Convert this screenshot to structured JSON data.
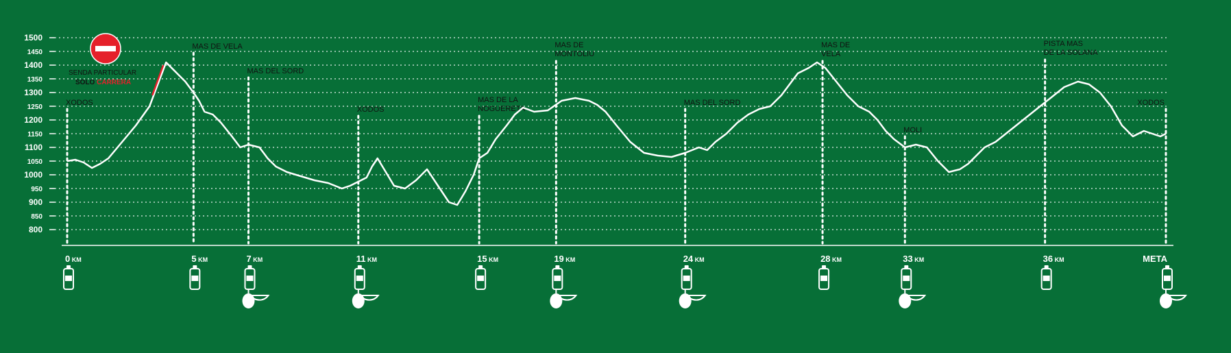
{
  "chart_data": {
    "type": "line",
    "title": "",
    "xlabel": "",
    "ylabel": "",
    "ylim": [
      750,
      1500
    ],
    "xlim": [
      0,
      40
    ],
    "y_ticks": [
      800,
      850,
      900,
      950,
      1000,
      1050,
      1100,
      1150,
      1200,
      1250,
      1300,
      1350,
      1400,
      1450,
      1500
    ],
    "grid": true,
    "km_unit": "KM",
    "series": [
      {
        "color": "#ffffff",
        "x": [
          0,
          0.3,
          0.6,
          0.9,
          1.2,
          1.5,
          2.0,
          2.5,
          3.0,
          3.3,
          3.6,
          4.0,
          4.3,
          4.6,
          4.8,
          5.0,
          5.3,
          5.6,
          6.0,
          6.3,
          6.6,
          7.0,
          7.3,
          7.6,
          8.0,
          8.5,
          9.0,
          9.5,
          10.0,
          10.3,
          10.6,
          10.9,
          11.1,
          11.3,
          11.6,
          11.9,
          12.3,
          12.7,
          13.1,
          13.5,
          13.9,
          14.2,
          14.5,
          14.8,
          15.0,
          15.3,
          15.6,
          16.0,
          16.3,
          16.6,
          17.0,
          17.5,
          18.0,
          18.5,
          19.0,
          19.3,
          19.6,
          20.0,
          20.5,
          21.0,
          21.5,
          22.0,
          22.5,
          23.0,
          23.3,
          23.6,
          24.0,
          24.4,
          24.8,
          25.2,
          25.6,
          26.0,
          26.3,
          26.6,
          27.0,
          27.3,
          27.6,
          28.0,
          28.4,
          28.8,
          29.2,
          29.5,
          29.8,
          30.1,
          30.5,
          30.9,
          31.3,
          31.7,
          32.1,
          32.5,
          32.8,
          33.0,
          33.4,
          33.8,
          34.3,
          34.8,
          35.3,
          35.8,
          36.3,
          36.8,
          37.2,
          37.6,
          38.0,
          38.4,
          38.8,
          39.2,
          39.5,
          39.8,
          40.0
        ],
        "values": [
          1050,
          1055,
          1045,
          1025,
          1040,
          1060,
          1120,
          1180,
          1250,
          1330,
          1410,
          1370,
          1340,
          1300,
          1270,
          1230,
          1220,
          1190,
          1140,
          1100,
          1110,
          1100,
          1060,
          1030,
          1010,
          995,
          980,
          970,
          950,
          960,
          975,
          990,
          1030,
          1060,
          1010,
          960,
          950,
          980,
          1020,
          960,
          900,
          890,
          940,
          1000,
          1060,
          1080,
          1130,
          1180,
          1220,
          1245,
          1230,
          1235,
          1270,
          1280,
          1270,
          1255,
          1230,
          1180,
          1120,
          1080,
          1070,
          1065,
          1080,
          1100,
          1090,
          1120,
          1150,
          1190,
          1220,
          1240,
          1250,
          1290,
          1330,
          1370,
          1390,
          1410,
          1390,
          1340,
          1290,
          1250,
          1230,
          1200,
          1160,
          1130,
          1100,
          1110,
          1100,
          1050,
          1010,
          1020,
          1040,
          1060,
          1100,
          1120,
          1160,
          1200,
          1240,
          1280,
          1320,
          1340,
          1330,
          1300,
          1250,
          1180,
          1140,
          1160,
          1150,
          1140,
          1150
        ]
      }
    ],
    "restricted_segment": {
      "x": [
        3.1,
        3.5
      ],
      "y": [
        1290,
        1400
      ],
      "color": "#e5202a"
    },
    "no_entry_note": {
      "line1": "SENDA PARTICULAR",
      "line2_a": "SOLO",
      "line2_b": "CARRERA"
    },
    "km_markers": [
      {
        "km": 0,
        "label": "0",
        "unit": true,
        "bottle": true,
        "food": false
      },
      {
        "km": 4.6,
        "label": "5",
        "unit": true,
        "bottle": true,
        "food": false
      },
      {
        "km": 6.6,
        "label": "7",
        "unit": true,
        "bottle": true,
        "food": true
      },
      {
        "km": 10.6,
        "label": "11",
        "unit": true,
        "bottle": true,
        "food": true
      },
      {
        "km": 15.0,
        "label": "15",
        "unit": true,
        "bottle": true,
        "food": false
      },
      {
        "km": 17.8,
        "label": "19",
        "unit": true,
        "bottle": true,
        "food": true
      },
      {
        "km": 22.5,
        "label": "24",
        "unit": true,
        "bottle": true,
        "food": true
      },
      {
        "km": 27.5,
        "label": "28",
        "unit": true,
        "bottle": true,
        "food": false
      },
      {
        "km": 30.5,
        "label": "33",
        "unit": true,
        "bottle": true,
        "food": true
      },
      {
        "km": 35.6,
        "label": "36",
        "unit": true,
        "bottle": true,
        "food": false
      },
      {
        "km": 40.0,
        "label": "META",
        "unit": false,
        "bottle": true,
        "food": true
      }
    ],
    "waypoints": [
      {
        "km": 0,
        "lines": [
          "XODOS"
        ],
        "label_y": 1255,
        "top_y": 1240
      },
      {
        "km": 4.6,
        "lines": [
          "MAS DE VELA"
        ],
        "label_y": 1460,
        "top_y": 1445
      },
      {
        "km": 6.6,
        "lines": [
          "MAS DEL SORD"
        ],
        "label_y": 1370,
        "top_y": 1355
      },
      {
        "km": 10.6,
        "lines": [
          "XODOS"
        ],
        "label_y": 1230,
        "top_y": 1215
      },
      {
        "km": 15.0,
        "lines": [
          "MAS DE LA",
          "NOGUERETA"
        ],
        "label_y": 1265,
        "top_y": 1215
      },
      {
        "km": 17.8,
        "lines": [
          "MAS DE",
          "MONTOLIU"
        ],
        "label_y": 1465,
        "top_y": 1415
      },
      {
        "km": 22.5,
        "lines": [
          "MAS DEL SORD"
        ],
        "label_y": 1255,
        "top_y": 1240
      },
      {
        "km": 27.5,
        "lines": [
          "MAS DE",
          "VELA"
        ],
        "label_y": 1465,
        "top_y": 1415
      },
      {
        "km": 30.5,
        "lines": [
          "MOLI"
        ],
        "label_y": 1155,
        "top_y": 1140
      },
      {
        "km": 35.6,
        "lines": [
          "PISTA MAS",
          "DE LA SOLANA"
        ],
        "label_y": 1470,
        "top_y": 1420
      },
      {
        "km": 40.0,
        "lines": [
          "XODOS"
        ],
        "label_y": 1255,
        "top_y": 1240
      }
    ]
  }
}
